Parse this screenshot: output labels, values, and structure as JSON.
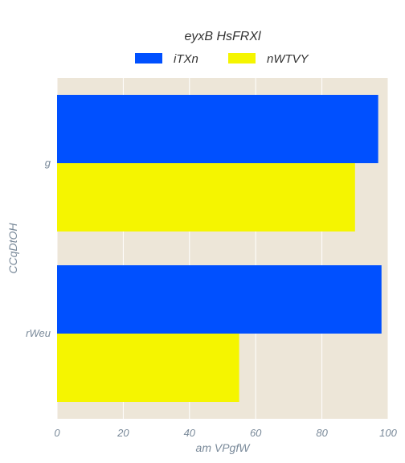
{
  "chart_data": {
    "type": "bar",
    "orientation": "horizontal",
    "title": "eyxB HsFRXl",
    "xlabel": "am VPgfW",
    "ylabel": "CCqDtOH",
    "categories": [
      "g",
      "rWeu"
    ],
    "series": [
      {
        "name": "iTXn",
        "values": [
          97,
          98
        ],
        "color": "#0050ff"
      },
      {
        "name": "nWTVY",
        "values": [
          90,
          55
        ],
        "color": "#f5f500"
      }
    ],
    "xlim": [
      0,
      100
    ],
    "xticks": [
      0,
      20,
      40,
      60,
      80,
      100
    ],
    "grid": true,
    "legend_position": "top-center",
    "background_color": "#ede6d8"
  }
}
